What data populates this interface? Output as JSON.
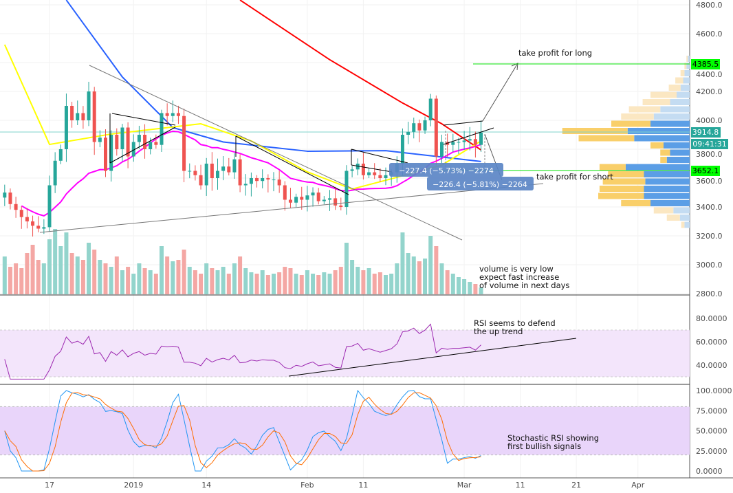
{
  "chart_data": [
    {
      "type": "candlestick",
      "pane": "price",
      "start_date": "2018-12-09",
      "interval": "1D",
      "closes": [
        3500,
        3420,
        3380,
        3330,
        3300,
        3270,
        3250,
        3260,
        3550,
        3720,
        3800,
        4100,
        4000,
        4050,
        4000,
        4200,
        3850,
        3880,
        3650,
        3900,
        3800,
        3950,
        3750,
        3850,
        3900,
        3800,
        3850,
        3830,
        4050,
        4030,
        4050,
        4030,
        3650,
        3650,
        3620,
        3550,
        3700,
        3600,
        3650,
        3680,
        3640,
        3730,
        3550,
        3560,
        3600,
        3580,
        3600,
        3590,
        3590,
        3550,
        3450,
        3430,
        3470,
        3450,
        3480,
        3500,
        3440,
        3450,
        3460,
        3410,
        3400,
        3650,
        3660,
        3700,
        3620,
        3640,
        3620,
        3600,
        3620,
        3640,
        3700,
        3900,
        3920,
        3980,
        3930,
        4000,
        4150,
        3750,
        3850,
        3830,
        3850,
        3850,
        3860,
        3870,
        3830,
        3915
      ],
      "volumes": [
        55,
        40,
        45,
        38,
        60,
        72,
        50,
        45,
        80,
        95,
        70,
        90,
        60,
        55,
        50,
        75,
        65,
        50,
        45,
        40,
        55,
        35,
        40,
        30,
        45,
        38,
        35,
        30,
        70,
        55,
        48,
        50,
        65,
        40,
        35,
        30,
        45,
        38,
        35,
        40,
        30,
        45,
        55,
        38,
        32,
        30,
        35,
        28,
        30,
        32,
        40,
        38,
        30,
        28,
        35,
        30,
        28,
        32,
        30,
        35,
        40,
        75,
        50,
        40,
        35,
        38,
        30,
        32,
        28,
        30,
        45,
        90,
        60,
        55,
        48,
        52,
        85,
        70,
        45,
        35,
        30,
        25,
        22,
        18,
        15,
        10
      ],
      "moving_averages": {
        "blue": {
          "color": "#2962ff",
          "points": [
            [
              "2018-12-20",
              4833
            ],
            [
              "2018-12-30",
              4300
            ],
            [
              "2019-01-08",
              3950
            ],
            [
              "2019-01-17",
              3850
            ],
            [
              "2019-02-01",
              3786
            ],
            [
              "2019-02-15",
              3790
            ],
            [
              "2019-03-04",
              3715
            ]
          ]
        },
        "red": {
          "color": "#ff0000",
          "points": [
            [
              "2019-01-20",
              4833
            ],
            [
              "2019-02-05",
              4420
            ],
            [
              "2019-02-18",
              4120
            ],
            [
              "2019-02-25",
              3976
            ],
            [
              "2019-03-04",
              3795
            ]
          ]
        },
        "yellow": {
          "color": "#ffff00",
          "points": [
            [
              "2018-12-09",
              4524
            ],
            [
              "2018-12-17",
              3833
            ],
            [
              "2018-12-28",
              3905
            ],
            [
              "2019-01-13",
              3976
            ],
            [
              "2019-01-22",
              3857
            ],
            [
              "2019-02-01",
              3643
            ],
            [
              "2019-02-09",
              3524
            ],
            [
              "2019-02-16",
              3595
            ],
            [
              "2019-02-25",
              3690
            ],
            [
              "2019-03-04",
              3857
            ]
          ]
        },
        "magenta": {
          "color": "#ff00ff",
          "period": 20
        }
      },
      "yaxis_ticks": [
        "4800.0",
        "4600.0",
        "4400.0",
        "4200.0",
        "4000.0",
        "3800.0",
        "3600.0",
        "3400.0",
        "3200.0",
        "3000.0",
        "2800.0"
      ],
      "ylim": [
        2800,
        4800
      ],
      "price_labels": {
        "take_profit_long": "4385.5",
        "last_price": "3914.8",
        "countdown": "09:41:31",
        "take_profit_short": "3652.1"
      },
      "measure_labels": [
        "−227.4 (−5.73%) −2274",
        "−226.4 (−5.81%) −2264"
      ],
      "volume_profile": {
        "prices": [
          4400,
          4350,
          4300,
          4250,
          4200,
          4150,
          4100,
          4050,
          4000,
          3950,
          3900,
          3850,
          3800,
          3750,
          3700,
          3650,
          3600,
          3550,
          3500,
          3450,
          3400,
          3350,
          3300,
          3250
        ],
        "up": [
          3,
          5,
          8,
          10,
          14,
          20,
          30,
          45,
          55,
          60,
          95,
          85,
          40,
          30,
          35,
          98,
          70,
          68,
          70,
          70,
          60,
          25,
          15,
          8
        ],
        "down": [
          2,
          3,
          6,
          12,
          18,
          40,
          42,
          48,
          50,
          60,
          100,
          85,
          20,
          15,
          10,
          40,
          55,
          65,
          68,
          70,
          45,
          30,
          20,
          5
        ],
        "value_area": [
          false,
          false,
          false,
          false,
          false,
          false,
          false,
          false,
          false,
          true,
          true,
          true,
          true,
          true,
          true,
          true,
          true,
          true,
          true,
          true,
          true,
          false,
          false,
          false
        ]
      }
    },
    {
      "type": "line",
      "pane": "rsi",
      "title": "",
      "yaxis_ticks": [
        "80.0000",
        "60.0000",
        "40.0000"
      ],
      "band": [
        30,
        70
      ],
      "ylim": [
        25,
        90
      ],
      "color": "#9c27b0"
    },
    {
      "type": "line",
      "pane": "stoch_rsi",
      "yaxis_ticks": [
        "100.0000",
        "75.0000",
        "50.0000",
        "25.0000",
        "0.0000"
      ],
      "band": [
        20,
        80
      ],
      "ylim": [
        -3,
        103
      ],
      "series": [
        {
          "color": "#2196f3"
        },
        {
          "color": "#ff6d00"
        }
      ]
    }
  ],
  "xaxis_ticks": [
    {
      "label": "17",
      "day": 8
    },
    {
      "label": "2019",
      "day": 23
    },
    {
      "label": "14",
      "day": 36
    },
    {
      "label": "Feb",
      "day": 54
    },
    {
      "label": "11",
      "day": 64
    },
    {
      "label": "Mar",
      "day": 82
    },
    {
      "label": "11",
      "day": 92
    },
    {
      "label": "21",
      "day": 102
    },
    {
      "label": "Apr",
      "day": 113
    }
  ],
  "annotations": {
    "take_profit_long": "take profit for long",
    "take_profit_short": "take profit for short",
    "volume_note": [
      "volume is very low",
      "expect fast increase",
      "of volume in next days"
    ],
    "rsi_note": [
      "RSI seems to defend",
      "the up trend"
    ],
    "stoch_note": [
      "Stochastic RSI showing",
      "first bullish signals"
    ]
  },
  "colors": {
    "up": "#26a69a",
    "down": "#ef5350",
    "vol_up": "#93d4cc",
    "vol_down": "#f4a7a4",
    "tp": "#00ff00",
    "last": "#26a69a",
    "measure": "#5b85c6"
  }
}
